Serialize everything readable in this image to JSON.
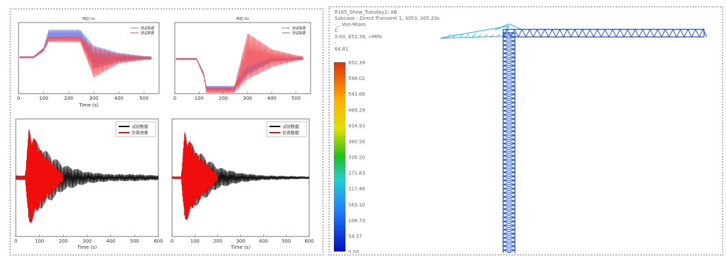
{
  "colors": {
    "ref": "#6a78e6",
    "sim_red": "#ef4b55",
    "black": "#141414",
    "red": "#f20d0d",
    "crane_blue": "#1447c8",
    "crane_cyan": "#20b0e6"
  },
  "chart_data": [
    {
      "type": "line",
      "panel": "top-left",
      "title": "响应 (a)",
      "xlabel": "Time (s)",
      "ylabel": "",
      "xlim": [
        0,
        560
      ],
      "ylim": [
        -1,
        1
      ],
      "xticks": [
        "0",
        "100",
        "200",
        "300",
        "400",
        "500"
      ],
      "legend": [
        "测试数据",
        "测试数据"
      ],
      "legend_position": "top-right",
      "series": [
        {
          "name": "测试数据",
          "x": [
            0,
            60,
            100,
            120,
            245,
            300,
            400,
            500,
            530
          ],
          "envelope_max": [
            0.05,
            0.05,
            0.3,
            0.8,
            0.8,
            0.35,
            0.15,
            0.06,
            0.05
          ],
          "envelope_min": [
            0.0,
            0.0,
            0.2,
            0.55,
            0.55,
            -0.3,
            -0.12,
            -0.05,
            -0.04
          ]
        },
        {
          "name": "测试数据",
          "x": [
            0,
            60,
            100,
            120,
            245,
            300,
            400,
            500,
            530
          ],
          "envelope_max": [
            0.05,
            0.05,
            0.28,
            0.62,
            0.62,
            0.3,
            0.12,
            0.05,
            0.04
          ],
          "envelope_min": [
            0.0,
            0.0,
            0.18,
            0.45,
            0.45,
            -0.55,
            -0.15,
            -0.05,
            -0.04
          ]
        }
      ]
    },
    {
      "type": "line",
      "panel": "top-right",
      "title": "响应 (b)",
      "xlabel": "",
      "ylabel": "",
      "xlim": [
        0,
        560
      ],
      "ylim": [
        -1,
        1
      ],
      "xticks": [
        "0",
        "100",
        "200",
        "300",
        "400",
        "500"
      ],
      "legend": [
        "测试数据",
        "测试数据"
      ],
      "legend_position": "top-right",
      "series": [
        {
          "name": "测试数据",
          "x": [
            0,
            90,
            120,
            130,
            245,
            300,
            400,
            500,
            530
          ],
          "envelope_max": [
            0.0,
            0.0,
            -0.4,
            -0.78,
            -0.78,
            -0.2,
            0.0,
            0.0,
            0.0
          ],
          "envelope_min": [
            -0.05,
            -0.05,
            -0.5,
            -0.9,
            -0.9,
            -0.5,
            -0.1,
            -0.05,
            -0.05
          ]
        },
        {
          "name": "测试数据",
          "x": [
            0,
            90,
            120,
            130,
            245,
            300,
            400,
            500,
            530
          ],
          "envelope_max": [
            0.0,
            0.0,
            -0.45,
            -0.82,
            -0.82,
            0.7,
            0.25,
            0.08,
            0.05
          ],
          "envelope_min": [
            -0.05,
            -0.05,
            -0.55,
            -0.98,
            -0.98,
            -0.6,
            -0.25,
            -0.08,
            -0.05
          ]
        }
      ]
    },
    {
      "type": "line",
      "panel": "bottom-left",
      "title": "",
      "xlabel": "Time (s)",
      "ylabel": "",
      "xlim": [
        0,
        600
      ],
      "ylim": [
        -1,
        1
      ],
      "xticks": [
        "0",
        "100",
        "200",
        "300",
        "400",
        "500",
        "600"
      ],
      "legend": [
        "试验数据",
        "仿真结果"
      ],
      "legend_position": "top-right",
      "series": [
        {
          "name": "试验数据",
          "x": [
            0,
            40,
            55,
            100,
            200,
            300,
            400,
            500,
            600
          ],
          "amplitude": [
            0.04,
            0.04,
            0.8,
            0.55,
            0.22,
            0.1,
            0.06,
            0.06,
            0.04
          ]
        },
        {
          "name": "仿真结果",
          "x": [
            0,
            40,
            55,
            100,
            200
          ],
          "amplitude": [
            0.03,
            0.03,
            0.85,
            0.5,
            0.05
          ]
        }
      ]
    },
    {
      "type": "line",
      "panel": "bottom-right",
      "title": "",
      "xlabel": "Time (s)",
      "ylabel": "",
      "xlim": [
        0,
        600
      ],
      "ylim": [
        -1,
        1
      ],
      "xticks": [
        "0",
        "100",
        "200",
        "300",
        "400",
        "500",
        "600"
      ],
      "legend": [
        "试验数据",
        "仿真数据"
      ],
      "legend_position": "top-right",
      "series": [
        {
          "name": "试验数据",
          "x": [
            0,
            40,
            55,
            100,
            200,
            300,
            400,
            500,
            600
          ],
          "amplitude": [
            0.02,
            0.02,
            0.75,
            0.5,
            0.18,
            0.08,
            0.04,
            0.03,
            0.02
          ]
        },
        {
          "name": "仿真数据",
          "x": [
            0,
            40,
            55,
            100,
            200
          ],
          "amplitude": [
            0.02,
            0.02,
            0.8,
            0.45,
            0.05
          ]
        }
      ]
    },
    {
      "type": "heatmap",
      "panel": "crane-fea",
      "info_lines": [
        "R165_Show_Tuesday2: AB",
        "Subcase - Direct Transient 1, 3053, 305.20s",
        "-_, Von-Mises",
        "C",
        "0.00, 652.39, =MPa",
        "-",
        "64.81"
      ],
      "colorbar_labels": [
        "652.39",
        "598.02",
        "543.66",
        "489.29",
        "434.93",
        "380.56",
        "326.20",
        "271.83",
        "217.46",
        "163.10",
        "108.73",
        "54.37",
        "0.00"
      ],
      "colorbar_range": [
        0.0,
        652.39
      ],
      "units": "MPa"
    }
  ]
}
